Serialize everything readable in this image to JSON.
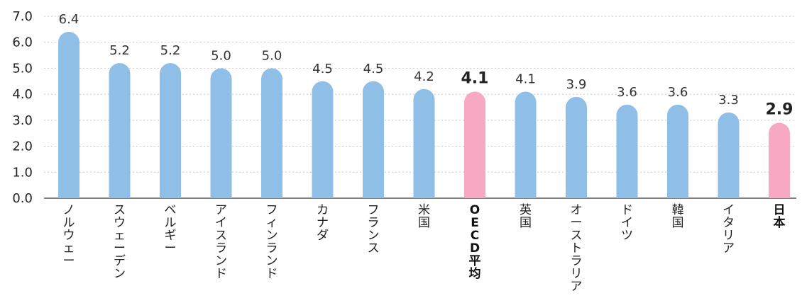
{
  "chart_data": {
    "type": "bar",
    "categories": [
      "ノルウェー",
      "スウェーデン",
      "ベルギー",
      "アイスランド",
      "フィンランド",
      "カナダ",
      "フランス",
      "米国",
      "OECD平均",
      "英国",
      "オーストラリア",
      "ドイツ",
      "韓国",
      "イタリア",
      "日本"
    ],
    "values": [
      6.4,
      5.2,
      5.2,
      5.0,
      5.0,
      4.5,
      4.5,
      4.2,
      4.1,
      4.1,
      3.9,
      3.6,
      3.6,
      3.3,
      2.9
    ],
    "value_labels": [
      "6.4",
      "5.2",
      "5.2",
      "5.0",
      "5.0",
      "4.5",
      "4.5",
      "4.2",
      "4.1",
      "4.1",
      "3.9",
      "3.6",
      "3.6",
      "3.3",
      "2.9"
    ],
    "highlighted": [
      "OECD平均",
      "日本"
    ],
    "ylim": [
      0,
      7
    ],
    "yticks": [
      "0.0",
      "1.0",
      "2.0",
      "3.0",
      "4.0",
      "5.0",
      "6.0",
      "7.0"
    ],
    "title": "",
    "xlabel": "",
    "ylabel": "",
    "grid": true,
    "colors": {
      "bar": "#8fbfe6",
      "highlight": "#f7a8c3",
      "grid": "#c8c8c8",
      "axis": "#555555"
    }
  }
}
